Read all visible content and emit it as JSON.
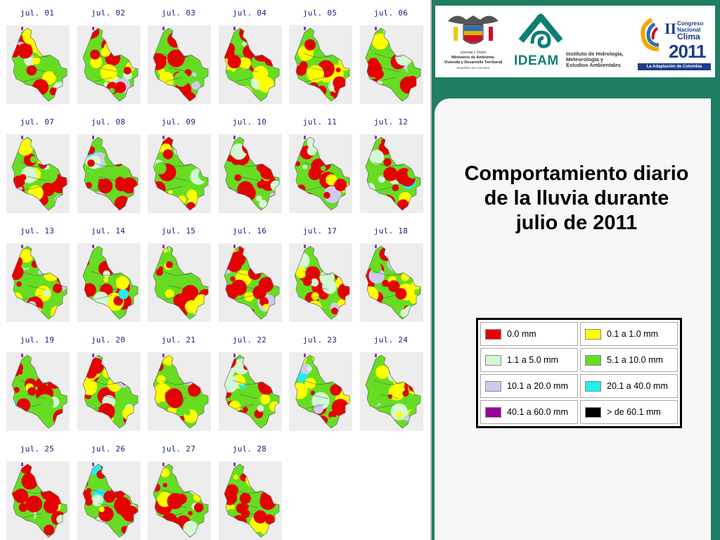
{
  "title": "Comportamiento diario de la lluvia durante julio de 2011",
  "logos": {
    "ministerio": {
      "line1": "Libertad y Orden",
      "line2": "Ministerio de Ambiente,",
      "line3": "Vivienda y Desarrollo Territorial",
      "line4": "República de Colombia"
    },
    "ideam": {
      "name": "IDEAM",
      "sub1": "Instituto de Hidrología,",
      "sub2": "Meteorología y",
      "sub3": "Estudios Ambientales"
    },
    "congreso": {
      "roman": "II",
      "line1": "Congreso",
      "line2": "Nacional",
      "line3": "Clima",
      "year": "2011",
      "tagline": "La Adaptación de Colombia"
    }
  },
  "maps": [
    {
      "label": "jul. 01"
    },
    {
      "label": "jul. 02"
    },
    {
      "label": "jul. 03"
    },
    {
      "label": "jul. 04"
    },
    {
      "label": "jul. 05"
    },
    {
      "label": "jul. 06"
    },
    {
      "label": "jul. 07"
    },
    {
      "label": "jul. 08"
    },
    {
      "label": "jul. 09"
    },
    {
      "label": "jul. 10"
    },
    {
      "label": "jul. 11"
    },
    {
      "label": "jul. 12"
    },
    {
      "label": "jul. 13"
    },
    {
      "label": "jul. 14"
    },
    {
      "label": "jul. 15"
    },
    {
      "label": "jul. 16"
    },
    {
      "label": "jul. 17"
    },
    {
      "label": "jul. 18"
    },
    {
      "label": "jul. 19"
    },
    {
      "label": "jul. 20"
    },
    {
      "label": "jul. 21"
    },
    {
      "label": "jul. 22"
    },
    {
      "label": "jul. 23"
    },
    {
      "label": "jul. 24"
    },
    {
      "label": "jul. 25"
    },
    {
      "label": "jul. 26"
    },
    {
      "label": "jul. 27"
    },
    {
      "label": "jul. 28"
    }
  ],
  "legend": [
    {
      "label": "0.0 mm",
      "color": "#e60000"
    },
    {
      "label": "0.1 a 1.0 mm",
      "color": "#ffff00"
    },
    {
      "label": "1.1 a 5.0 mm",
      "color": "#d4f7d4"
    },
    {
      "label": "5.1 a 10.0 mm",
      "color": "#66dd22"
    },
    {
      "label": "10.1 a 20.0 mm",
      "color": "#ccccf0"
    },
    {
      "label": "20.1 a 40.0 mm",
      "color": "#22eeee"
    },
    {
      "label": "40.1 a 60.0 mm",
      "color": "#990099"
    },
    {
      "label": "> de 60.1 mm",
      "color": "#000000"
    }
  ]
}
